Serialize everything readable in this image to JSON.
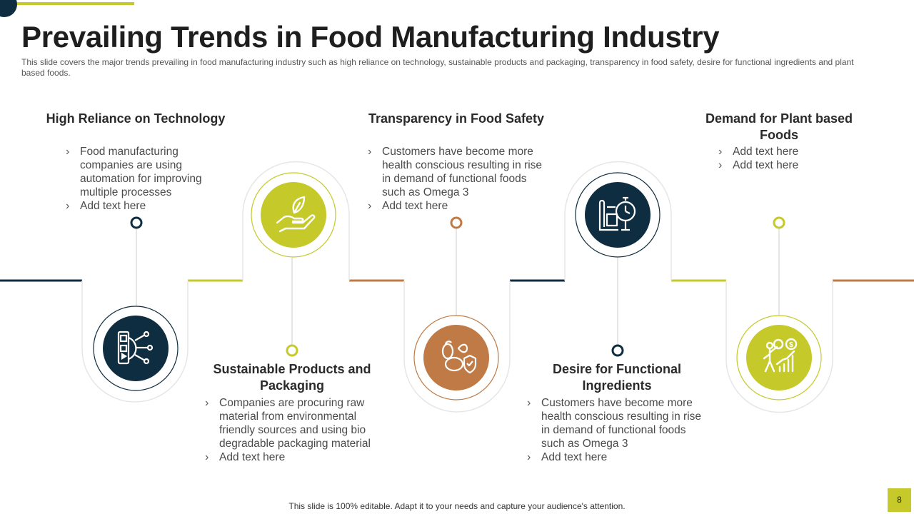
{
  "title": "Prevailing Trends in Food Manufacturing Industry",
  "subtitle": "This slide covers the major trends prevailing  in food manufacturing  industry such as high reliance on technology, sustainable products and packaging, transparency in food safety, desire for functional ingredients and plant based foods.",
  "colors": {
    "navy": "#0f2d40",
    "lime": "#c5c92a",
    "copper": "#c07a45"
  },
  "trends": [
    {
      "heading": "High Reliance on Technology",
      "icon": "technology-gear-icon",
      "bullets": [
        "Food manufacturing companies are using automation for improving multiple processes",
        "Add text here"
      ]
    },
    {
      "heading": "Sustainable Products and Packaging",
      "icon": "hand-leaf-icon",
      "bullets": [
        "Companies are procuring raw material from environmental friendly sources and using bio degradable packaging material",
        "Add text here"
      ]
    },
    {
      "heading": "Transparency in Food Safety",
      "icon": "food-shield-icon",
      "bullets": [
        "Customers have become more health conscious resulting in rise in demand of functional foods such  as Omega 3",
        "Add text here"
      ]
    },
    {
      "heading": "Desire for Functional Ingredients",
      "icon": "plan-clock-icon",
      "bullets": [
        "Customers have become more health conscious resulting in rise in demand of functional foods such  as Omega 3",
        "Add text here"
      ]
    },
    {
      "heading": "Demand for Plant based Foods",
      "icon": "growth-chart-person-icon",
      "bullets": [
        "Add text here",
        "Add text here"
      ]
    }
  ],
  "footer": "This slide is 100% editable. Adapt it to your needs and capture your audience's attention.",
  "page_number": "8"
}
